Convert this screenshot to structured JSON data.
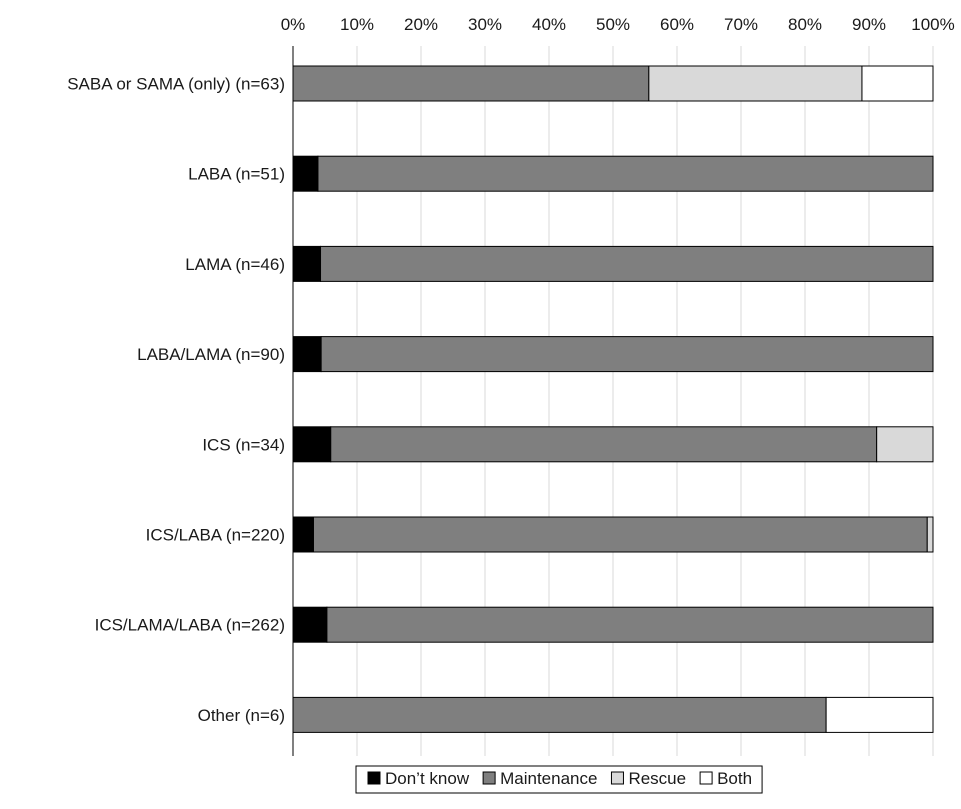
{
  "chart_data": {
    "type": "bar",
    "orientation": "horizontal",
    "stacked": "percent",
    "categories": [
      "SABA or SAMA (only) (n=63)",
      "LABA (n=51)",
      "LAMA (n=46)",
      "LABA/LAMA (n=90)",
      "ICS (n=34)",
      "ICS/LABA (n=220)",
      "ICS/LAMA/LABA (n=262)",
      "Other (n=6)"
    ],
    "series": [
      {
        "name": "Don’t know",
        "color": "#000000",
        "values": [
          0,
          3.9,
          4.3,
          4.4,
          5.9,
          3.2,
          5.3,
          0
        ]
      },
      {
        "name": "Maintenance",
        "color": "#7f7f7f",
        "values": [
          55.6,
          96.1,
          95.7,
          95.6,
          85.3,
          95.9,
          94.7,
          83.3
        ]
      },
      {
        "name": "Rescue",
        "color": "#d9d9d9",
        "values": [
          33.3,
          0,
          0,
          0,
          8.8,
          0.9,
          0,
          0
        ]
      },
      {
        "name": "Both",
        "color": "#ffffff",
        "values": [
          11.1,
          0,
          0,
          0,
          0,
          0,
          0,
          16.7
        ]
      }
    ],
    "x_ticks": [
      "0%",
      "10%",
      "20%",
      "30%",
      "40%",
      "50%",
      "60%",
      "70%",
      "80%",
      "90%",
      "100%"
    ],
    "xlim": [
      0,
      100
    ],
    "grid": "vertical",
    "legend_position": "bottom"
  }
}
